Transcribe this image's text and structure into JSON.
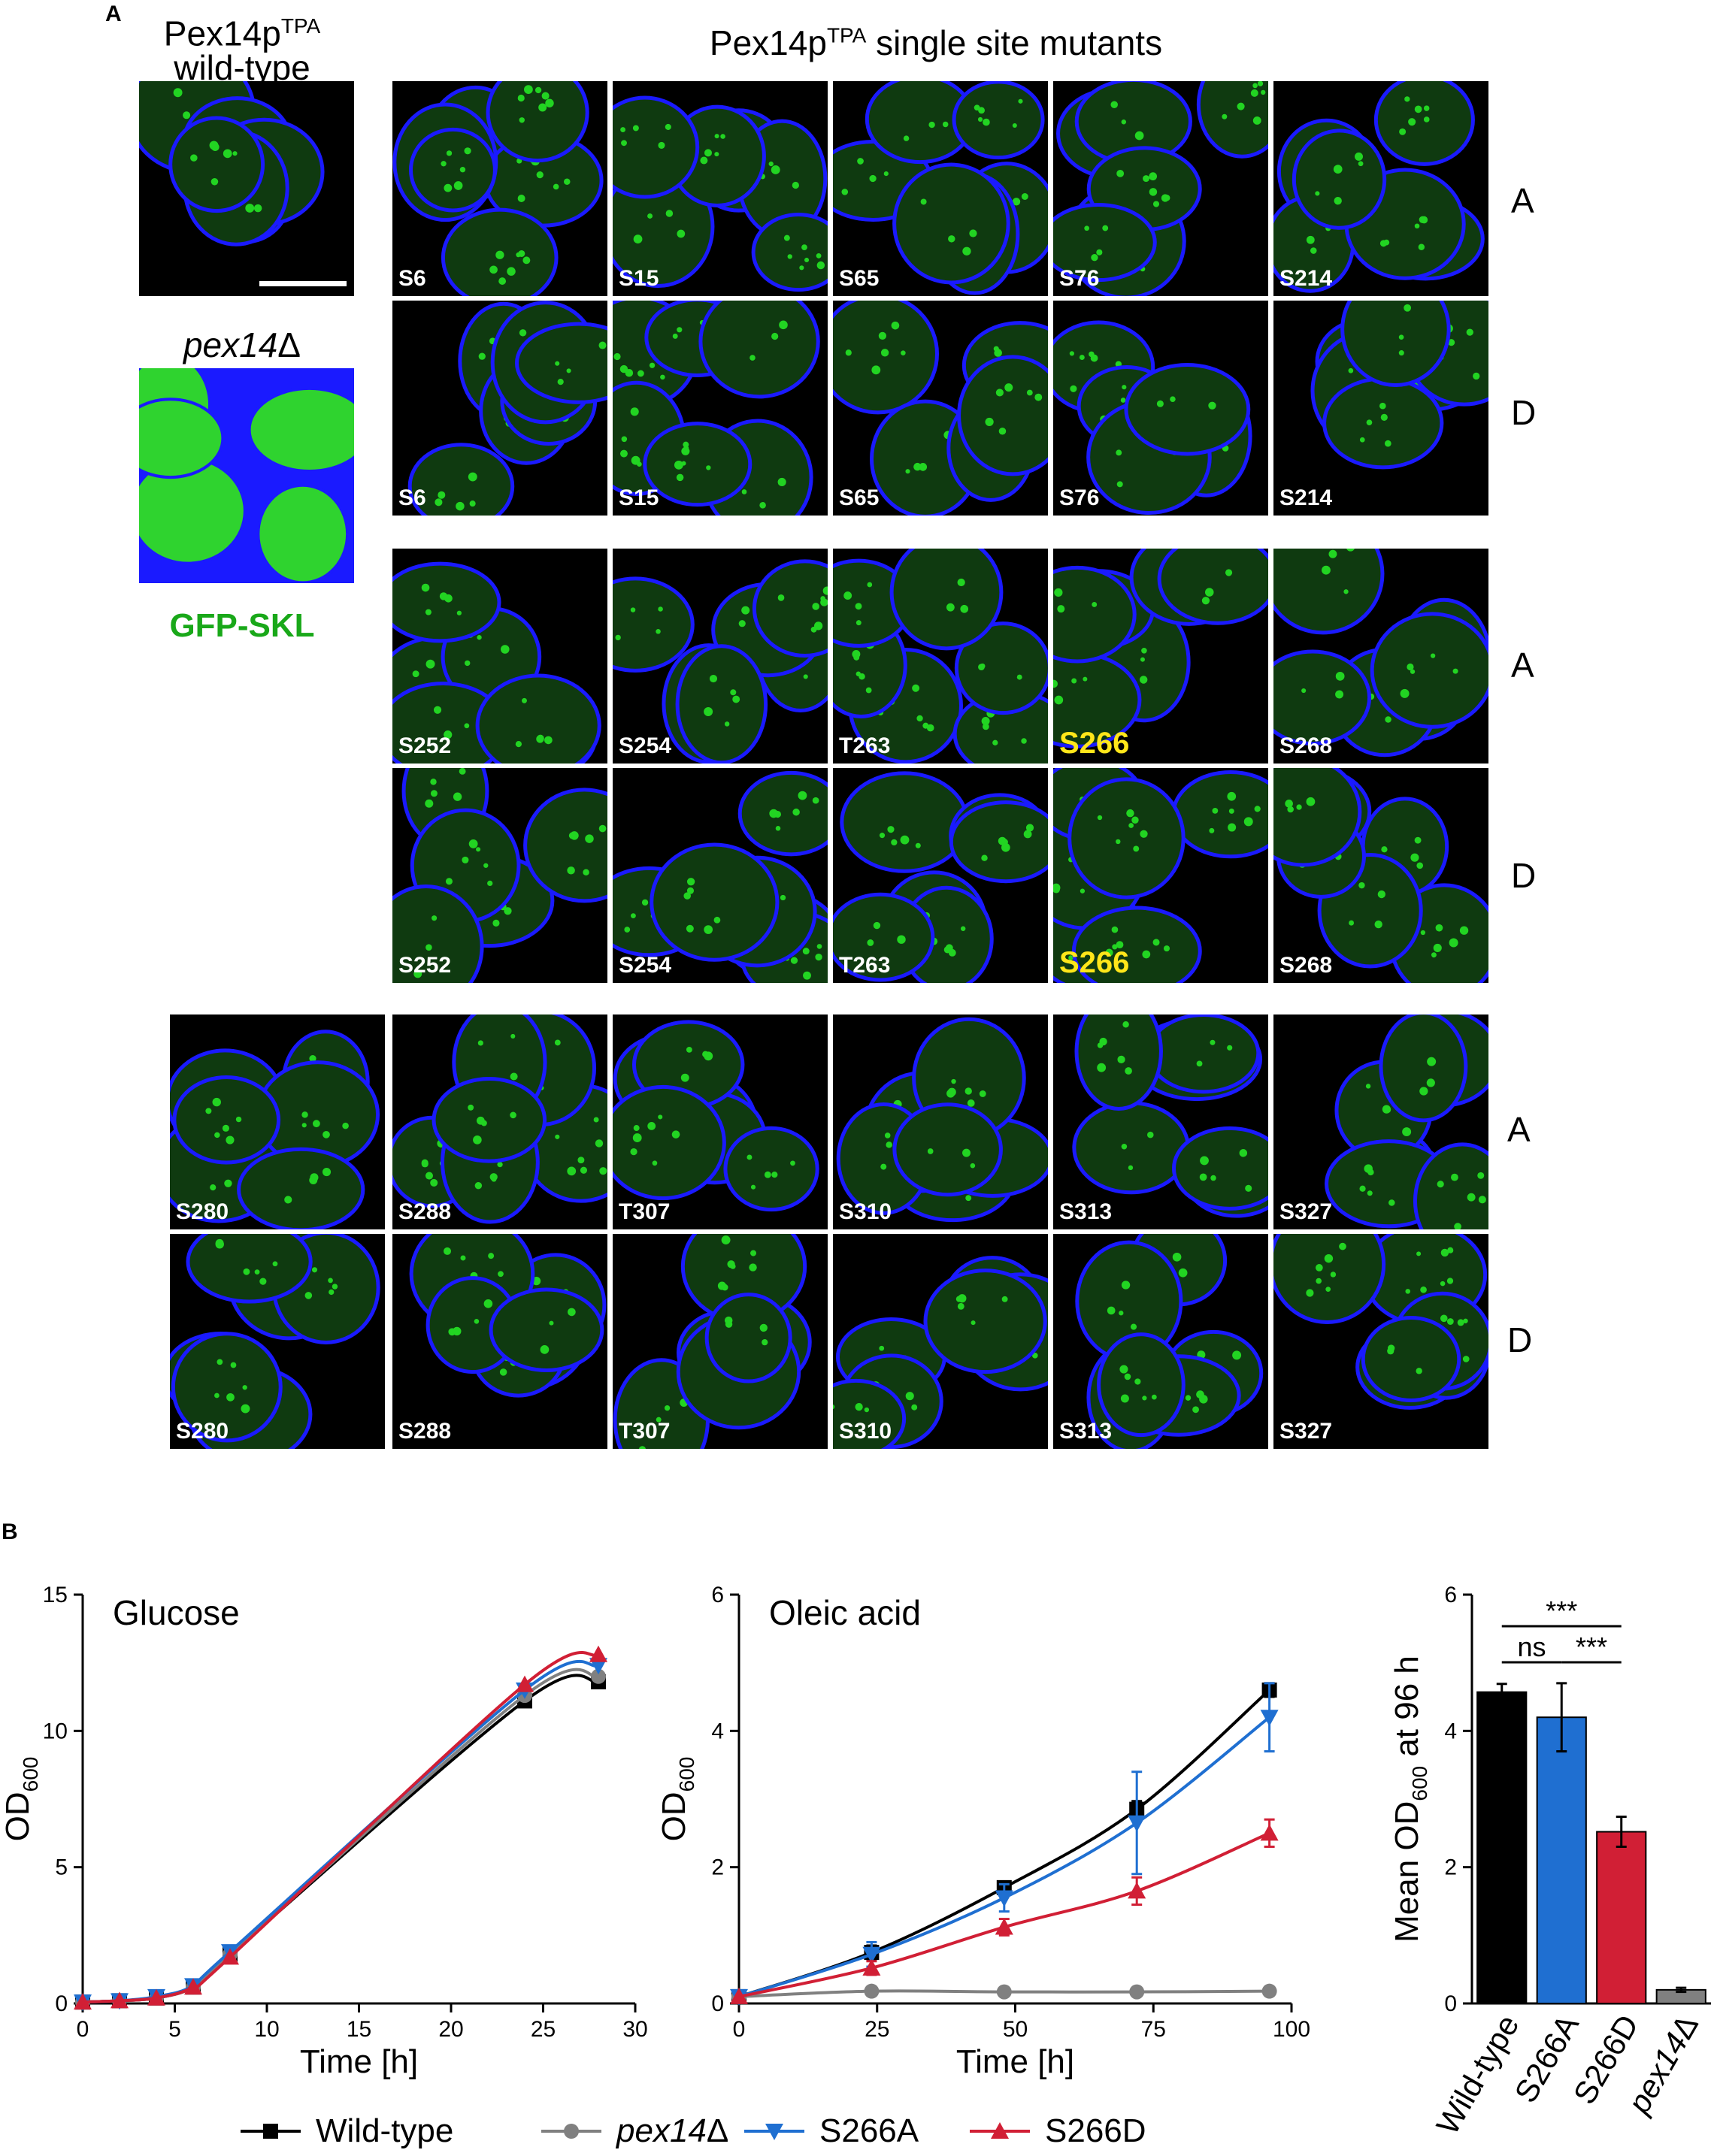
{
  "panel_a": {
    "letter": "A",
    "wt_title_line1": "Pex14p",
    "wt_title_sup": "TPA",
    "wt_title_line2": "wild-type",
    "pex_title_italic": "pex14",
    "pex_title_symbol": "Δ",
    "stain_label": "GFP-SKL",
    "mutants_title_pre": "Pex14p",
    "mutants_title_sup": "TPA",
    "mutants_title_post": " single site mutants",
    "row_letters": [
      "A",
      "D",
      "A",
      "D",
      "A",
      "D"
    ],
    "block1_sites": [
      "S6",
      "S15",
      "S65",
      "S76",
      "S214"
    ],
    "block2_sites": [
      "S252",
      "S254",
      "T263",
      "S266",
      "S268"
    ],
    "block3_sites": [
      "S280",
      "S288",
      "T307",
      "S310",
      "S313",
      "S327"
    ],
    "highlight_site": "S266",
    "colors": {
      "membrane": "#1a1aff",
      "gfp": "#22d422",
      "background": "#000000",
      "highlight": "#ffe61a"
    }
  },
  "panel_b": {
    "letter": "B",
    "legend": [
      {
        "label": "Wild-type",
        "color": "#000000",
        "marker": "square"
      },
      {
        "label_italic": "pex14",
        "label_symbol": "Δ",
        "color": "#808080",
        "marker": "circle"
      },
      {
        "label": "S266A",
        "color": "#1f6fd1",
        "marker": "triangle-down"
      },
      {
        "label": "S266D",
        "color": "#d11f35",
        "marker": "triangle-up"
      }
    ]
  },
  "chart_data": [
    {
      "type": "line",
      "title": "Glucose",
      "xlabel": "Time [h]",
      "ylabel": "OD",
      "ylabel_sub": "600",
      "xlim": [
        0,
        30
      ],
      "ylim": [
        0,
        15
      ],
      "xticks": [
        "0",
        "5",
        "10",
        "15",
        "20",
        "25",
        "30"
      ],
      "yticks": [
        "0",
        "5",
        "10",
        "15"
      ],
      "x": [
        0,
        2,
        4,
        6,
        8,
        24,
        28
      ],
      "series": [
        {
          "name": "Wild-type",
          "color": "#000000",
          "marker": "square",
          "values": [
            0.05,
            0.1,
            0.2,
            0.6,
            1.8,
            11.1,
            11.8
          ]
        },
        {
          "name": "pex14Δ",
          "color": "#808080",
          "marker": "circle",
          "values": [
            0.05,
            0.1,
            0.2,
            0.6,
            1.8,
            11.3,
            12.0
          ]
        },
        {
          "name": "S266A",
          "color": "#1f6fd1",
          "marker": "triangle-down",
          "values": [
            0.05,
            0.1,
            0.25,
            0.65,
            1.9,
            11.5,
            12.4
          ]
        },
        {
          "name": "S266D",
          "color": "#d11f35",
          "marker": "triangle-up",
          "values": [
            0.05,
            0.1,
            0.2,
            0.6,
            1.7,
            11.7,
            12.8
          ]
        }
      ]
    },
    {
      "type": "line",
      "title": "Oleic acid",
      "xlabel": "Time [h]",
      "ylabel": "OD",
      "ylabel_sub": "600",
      "xlim": [
        0,
        100
      ],
      "ylim": [
        0,
        6
      ],
      "xticks": [
        "0",
        "25",
        "50",
        "75",
        "100"
      ],
      "yticks": [
        "0",
        "2",
        "4",
        "6"
      ],
      "x": [
        0,
        24,
        48,
        72,
        96
      ],
      "series": [
        {
          "name": "Wild-type",
          "color": "#000000",
          "marker": "square",
          "values": [
            0.1,
            0.75,
            1.7,
            2.85,
            4.6
          ],
          "errors": [
            0,
            0.1,
            0.08,
            0.12,
            0.1
          ]
        },
        {
          "name": "pex14Δ",
          "color": "#808080",
          "marker": "circle",
          "values": [
            0.1,
            0.18,
            0.17,
            0.17,
            0.18
          ],
          "errors": [
            0,
            0.02,
            0.02,
            0.02,
            0.02
          ]
        },
        {
          "name": "S266A",
          "color": "#1f6fd1",
          "marker": "triangle-down",
          "values": [
            0.1,
            0.72,
            1.55,
            2.65,
            4.2
          ],
          "errors": [
            0,
            0.18,
            0.2,
            0.75,
            0.5
          ]
        },
        {
          "name": "S266D",
          "color": "#d11f35",
          "marker": "triangle-up",
          "values": [
            0.1,
            0.52,
            1.12,
            1.65,
            2.5
          ],
          "errors": [
            0,
            0.1,
            0.12,
            0.2,
            0.2
          ]
        }
      ]
    },
    {
      "type": "bar",
      "ylabel_pre": "Mean OD",
      "ylabel_sub": "600",
      "ylabel_post": " at 96 h",
      "ylim": [
        0,
        6
      ],
      "yticks": [
        "0",
        "2",
        "4",
        "6"
      ],
      "categories": [
        "Wild-type",
        "S266A",
        "S266D",
        "pex14Δ"
      ],
      "values": [
        4.57,
        4.2,
        2.52,
        0.2
      ],
      "errors": [
        0.12,
        0.5,
        0.22,
        0.03
      ],
      "colors": [
        "#000000",
        "#1f6fd1",
        "#d11f35",
        "#808080"
      ],
      "significance": [
        {
          "from": 0,
          "to": 2,
          "label": "***"
        },
        {
          "from": 0,
          "to": 1,
          "label": "ns"
        },
        {
          "from": 1,
          "to": 2,
          "label": "***"
        }
      ]
    }
  ]
}
